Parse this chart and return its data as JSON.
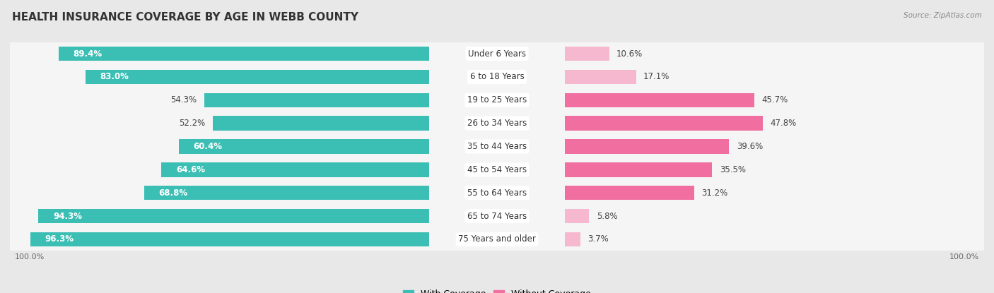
{
  "title": "HEALTH INSURANCE COVERAGE BY AGE IN WEBB COUNTY",
  "source": "Source: ZipAtlas.com",
  "categories": [
    "Under 6 Years",
    "6 to 18 Years",
    "19 to 25 Years",
    "26 to 34 Years",
    "35 to 44 Years",
    "45 to 54 Years",
    "55 to 64 Years",
    "65 to 74 Years",
    "75 Years and older"
  ],
  "with_coverage": [
    89.4,
    83.0,
    54.3,
    52.2,
    60.4,
    64.6,
    68.8,
    94.3,
    96.3
  ],
  "without_coverage": [
    10.6,
    17.1,
    45.7,
    47.8,
    39.6,
    35.5,
    31.2,
    5.8,
    3.7
  ],
  "color_with": "#3BBFB4",
  "color_without_dark": "#F06FA0",
  "color_without_light": "#F5B8CE",
  "without_dark_threshold": 25.0,
  "bg_color": "#e8e8e8",
  "row_bg": "#f5f5f5",
  "label_bg": "#ffffff",
  "bar_height": 0.62,
  "title_fontsize": 11,
  "label_fontsize": 8.5,
  "cat_fontsize": 8.5,
  "legend_fontsize": 9,
  "pct_fontsize": 8.5
}
